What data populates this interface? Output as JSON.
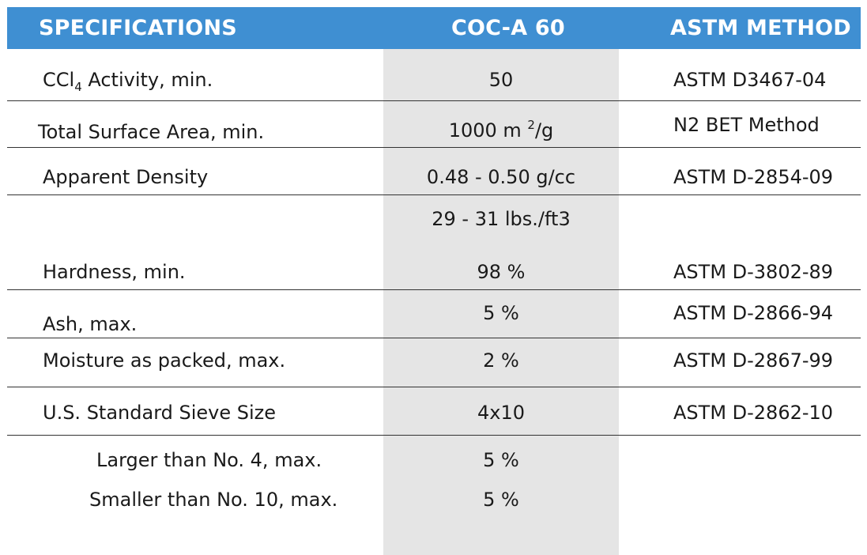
{
  "header": {
    "col_spec": "SPECIFICATIONS",
    "col_product": "COC-A 60",
    "col_method": "ASTM METHOD",
    "bg_color": "#3f8fd2"
  },
  "rows": {
    "ccl4": {
      "label_pre": "CCl",
      "label_sub": "4",
      "label_post": " Activity, min.",
      "value": "50",
      "method": "ASTM D3467-04"
    },
    "surface": {
      "label": "Total Surface Area, min.",
      "value_pre": "1000 m ",
      "value_sup": "2",
      "value_post": "/g",
      "method": "N2 BET Method"
    },
    "density": {
      "label": "Apparent Density",
      "value": "0.48 - 0.50 g/cc",
      "value2": "29 - 31 lbs./ft3",
      "method": "ASTM D-2854-09"
    },
    "hardness": {
      "label": "Hardness, min.",
      "value": "98 %",
      "method": "ASTM D-3802-89"
    },
    "ash": {
      "label": "Ash, max.",
      "value": "5 %",
      "method": "ASTM D-2866-94"
    },
    "moisture": {
      "label": "Moisture as packed, max.",
      "value": "2 %",
      "method": "ASTM D-2867-99"
    },
    "sieve": {
      "label": "U.S. Standard Sieve Size",
      "value": "4x10",
      "method": "ASTM D-2862-10"
    },
    "larger": {
      "label": "Larger than No. 4, max.",
      "value": "5 %"
    },
    "smaller": {
      "label": "Smaller than No. 10, max.",
      "value": "5 %"
    }
  }
}
